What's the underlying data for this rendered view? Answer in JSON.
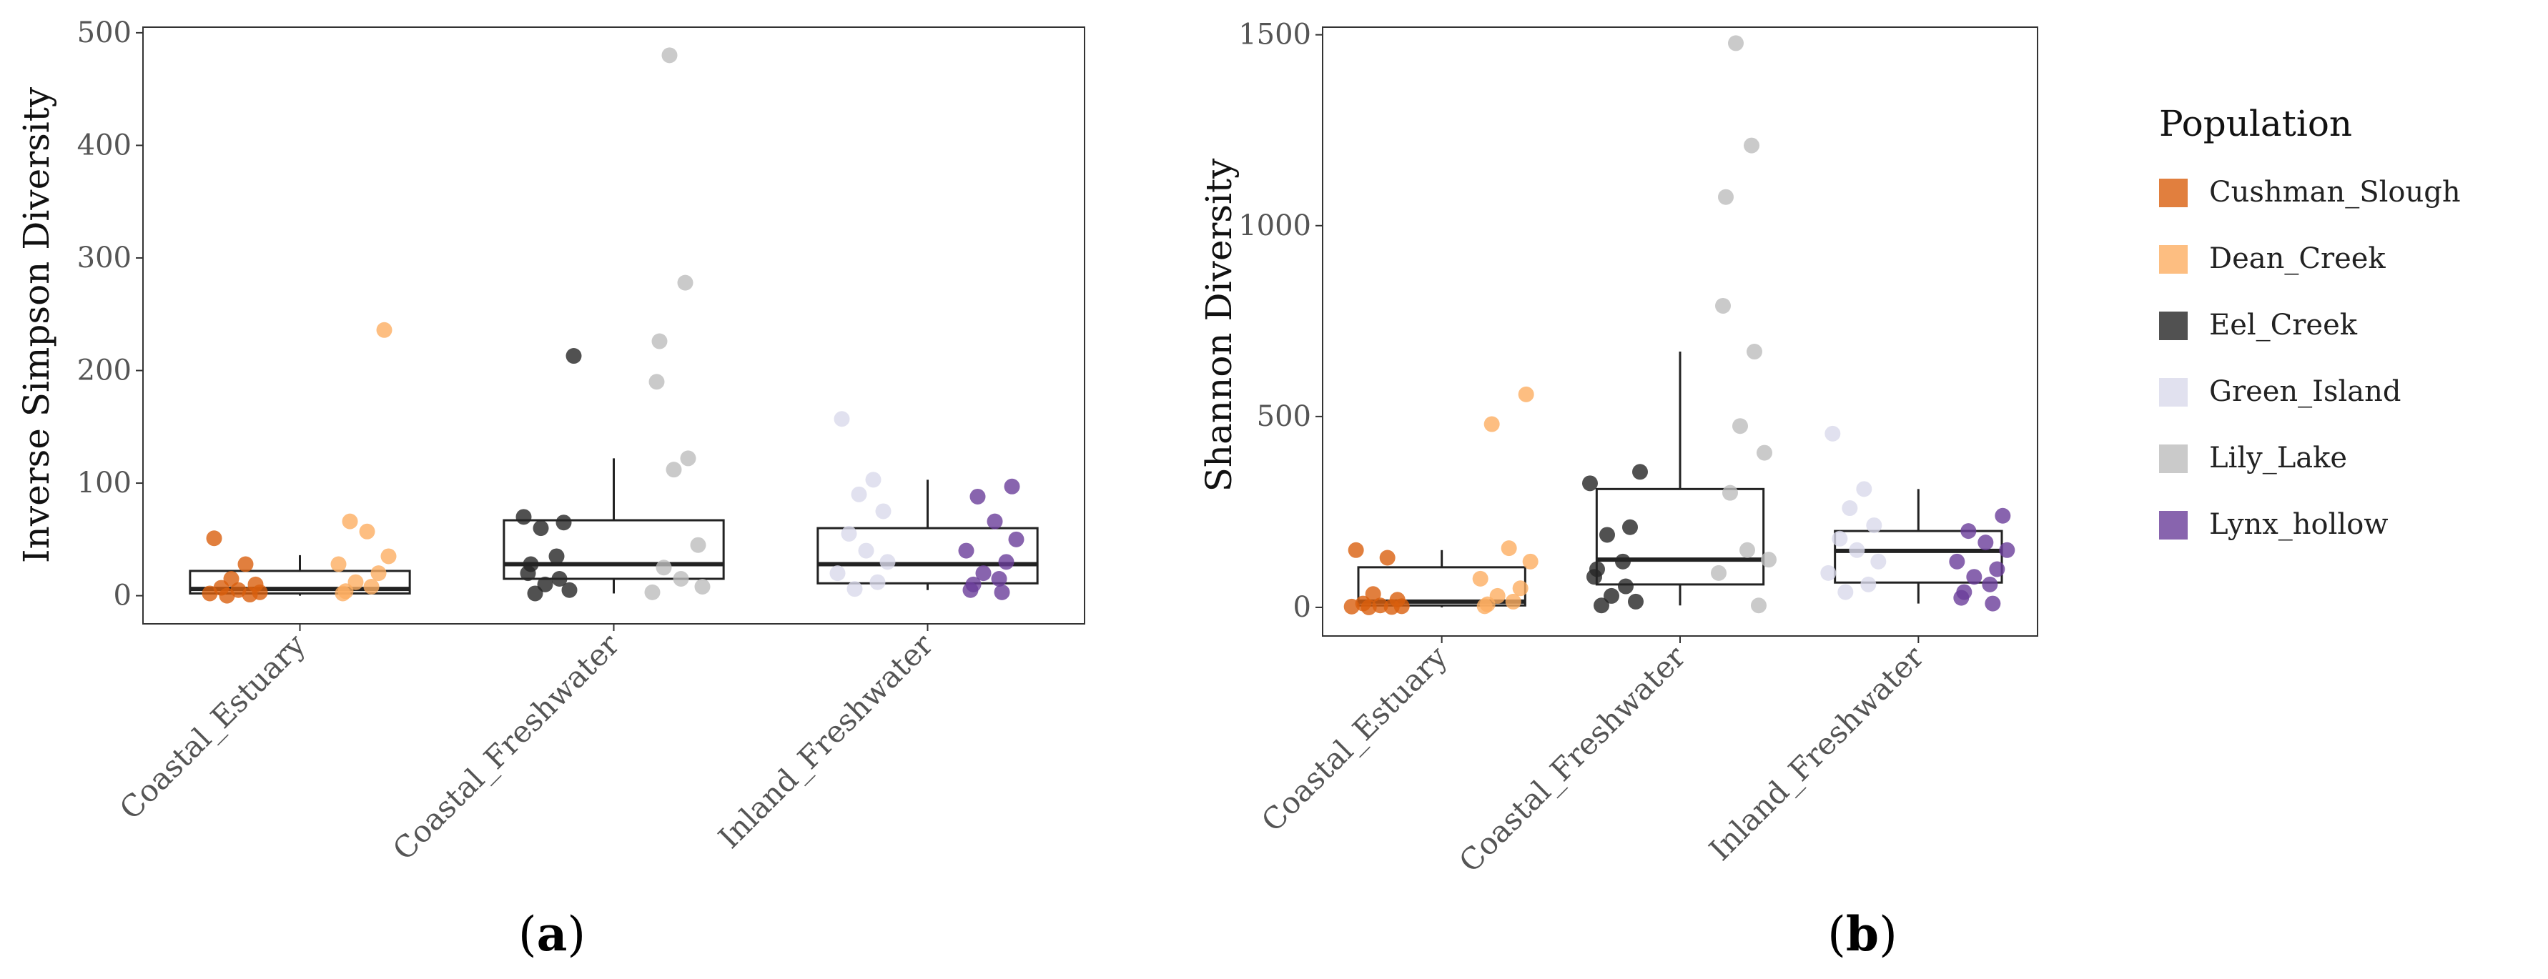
{
  "figure": {
    "panel_labels": [
      {
        "open": "(",
        "letter": "a",
        "close": ")"
      },
      {
        "open": "(",
        "letter": "b",
        "close": ")"
      }
    ],
    "legend": {
      "title": "Population",
      "entries": [
        {
          "name": "Cushman_Slough",
          "color": "#d95f0e"
        },
        {
          "name": "Dean_Creek",
          "color": "#fdae61"
        },
        {
          "name": "Eel_Creek",
          "color": "#252525"
        },
        {
          "name": "Green_Island",
          "color": "#dadaeb"
        },
        {
          "name": "Lily_Lake",
          "color": "#bdbdbd"
        },
        {
          "name": "Lynx_hollow",
          "color": "#6a3d9a"
        }
      ]
    }
  },
  "chart_data": [
    {
      "type": "box",
      "panel": "a",
      "title": "",
      "xlabel": "",
      "ylabel": "Inverse Simpson Diversity",
      "ylim": [
        -25,
        505
      ],
      "yticks": [
        0,
        100,
        200,
        300,
        400,
        500
      ],
      "categories": [
        "Coastal_Estuary",
        "Coastal_Freshwater",
        "Inland_Freshwater"
      ],
      "boxes": [
        {
          "category": "Coastal_Estuary",
          "whisker_low": 0,
          "q1": 2,
          "median": 6,
          "q3": 22,
          "whisker_high": 36
        },
        {
          "category": "Coastal_Freshwater",
          "whisker_low": 2,
          "q1": 15,
          "median": 28,
          "q3": 67,
          "whisker_high": 122
        },
        {
          "category": "Inland_Freshwater",
          "whisker_low": 5,
          "q1": 11,
          "median": 28,
          "q3": 60,
          "whisker_high": 103
        }
      ],
      "points": [
        {
          "category": "Coastal_Estuary",
          "population": "Cushman_Slough",
          "values": [
            51,
            28,
            15,
            10,
            7,
            5,
            3,
            2,
            1,
            0
          ]
        },
        {
          "category": "Coastal_Estuary",
          "population": "Dean_Creek",
          "values": [
            236,
            66,
            57,
            35,
            28,
            20,
            12,
            8,
            4,
            2
          ]
        },
        {
          "category": "Coastal_Freshwater",
          "population": "Eel_Creek",
          "values": [
            213,
            70,
            65,
            60,
            35,
            28,
            20,
            15,
            10,
            5,
            2
          ]
        },
        {
          "category": "Coastal_Freshwater",
          "population": "Lily_Lake",
          "values": [
            480,
            278,
            226,
            190,
            122,
            112,
            45,
            25,
            15,
            8,
            3
          ]
        },
        {
          "category": "Inland_Freshwater",
          "population": "Green_Island",
          "values": [
            157,
            103,
            90,
            75,
            55,
            40,
            30,
            20,
            12,
            6
          ]
        },
        {
          "category": "Inland_Freshwater",
          "population": "Lynx_hollow",
          "values": [
            97,
            88,
            66,
            50,
            40,
            30,
            20,
            15,
            10,
            5,
            3
          ]
        }
      ]
    },
    {
      "type": "box",
      "panel": "b",
      "title": "",
      "xlabel": "",
      "ylabel": "Shannon Diversity",
      "ylim": [
        -75,
        1520
      ],
      "yticks": [
        0,
        500,
        1000,
        1500
      ],
      "categories": [
        "Coastal_Estuary",
        "Coastal_Freshwater",
        "Inland_Freshwater"
      ],
      "boxes": [
        {
          "category": "Coastal_Estuary",
          "whisker_low": 0,
          "q1": 5,
          "median": 15,
          "q3": 105,
          "whisker_high": 150
        },
        {
          "category": "Coastal_Freshwater",
          "whisker_low": 5,
          "q1": 60,
          "median": 125,
          "q3": 310,
          "whisker_high": 670
        },
        {
          "category": "Inland_Freshwater",
          "whisker_low": 10,
          "q1": 65,
          "median": 148,
          "q3": 200,
          "whisker_high": 310
        }
      ],
      "points": [
        {
          "category": "Coastal_Estuary",
          "population": "Cushman_Slough",
          "values": [
            150,
            130,
            35,
            20,
            10,
            5,
            3,
            2,
            1,
            0
          ]
        },
        {
          "category": "Coastal_Estuary",
          "population": "Dean_Creek",
          "values": [
            558,
            480,
            155,
            120,
            75,
            50,
            30,
            15,
            8,
            3
          ]
        },
        {
          "category": "Coastal_Freshwater",
          "population": "Eel_Creek",
          "values": [
            355,
            325,
            210,
            190,
            120,
            100,
            80,
            55,
            30,
            15,
            5
          ]
        },
        {
          "category": "Coastal_Freshwater",
          "population": "Lily_Lake",
          "values": [
            1478,
            1210,
            1075,
            790,
            670,
            475,
            405,
            300,
            150,
            125,
            90,
            5
          ]
        },
        {
          "category": "Inland_Freshwater",
          "population": "Green_Island",
          "values": [
            455,
            310,
            260,
            215,
            180,
            150,
            120,
            90,
            60,
            40
          ]
        },
        {
          "category": "Inland_Freshwater",
          "population": "Lynx_hollow",
          "values": [
            240,
            200,
            170,
            150,
            120,
            100,
            80,
            60,
            40,
            25,
            10
          ]
        }
      ]
    }
  ]
}
